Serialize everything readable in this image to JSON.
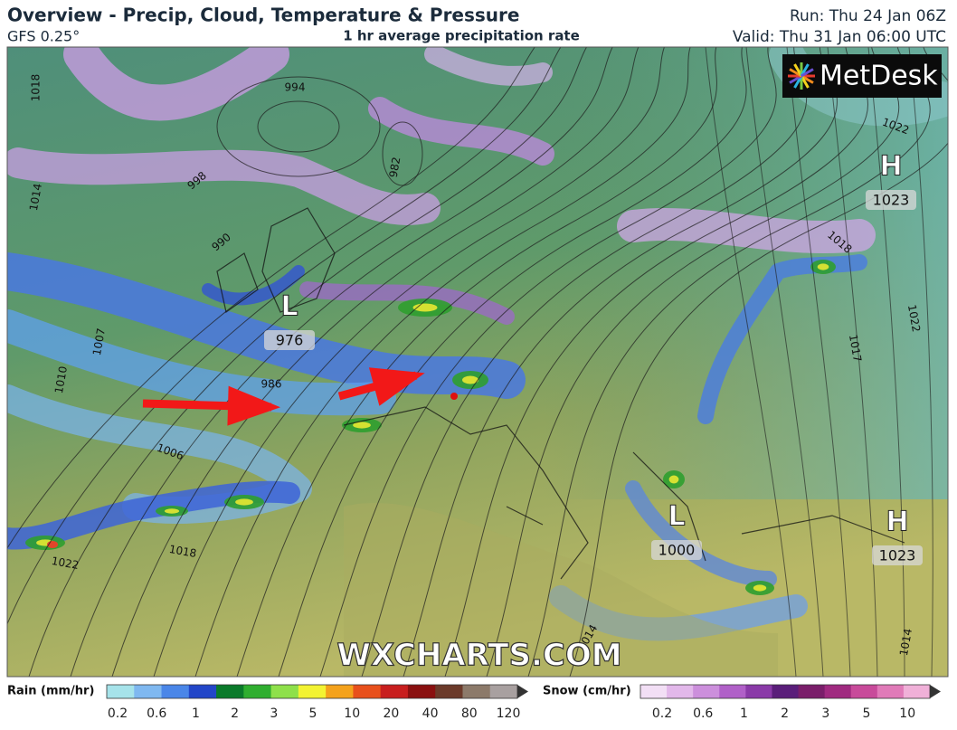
{
  "header": {
    "title": "Overview - Precip, Cloud, Temperature & Pressure",
    "model": "GFS 0.25°",
    "subtitle": "1 hr average precipitation rate",
    "run": "Run: Thu 24 Jan 06Z",
    "valid": "Valid: Thu 31 Jan 06:00 UTC"
  },
  "logo": "MetDesk",
  "pressure_centres": [
    {
      "type": "H",
      "value": 1023
    },
    {
      "type": "L",
      "value": 976
    },
    {
      "type": "L",
      "value": 1000
    },
    {
      "type": "H",
      "value": 1023
    }
  ],
  "isobar_labels": [
    994,
    982,
    998,
    990,
    1018,
    1014,
    1010,
    1007,
    986,
    1006,
    1018,
    1022,
    1022,
    1018,
    1022,
    1017,
    1014,
    1014
  ],
  "watermark": "WXCHARTS.COM",
  "legend": {
    "rain": {
      "title": "Rain (mm/hr)",
      "ticks": [
        0.2,
        0.6,
        1,
        2,
        3,
        5,
        10,
        20,
        40,
        80,
        120
      ]
    },
    "snow": {
      "title": "Snow (cm/hr)",
      "ticks": [
        0.2,
        0.6,
        1,
        2,
        3,
        5,
        10
      ]
    }
  }
}
